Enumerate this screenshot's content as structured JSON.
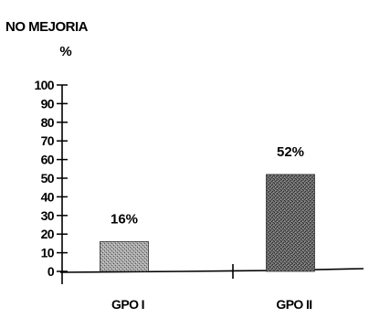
{
  "chart_data": {
    "type": "bar",
    "title": "NO MEJORIA",
    "ylabel": "%",
    "xlabel": "",
    "categories": [
      "GPO I",
      "GPO II"
    ],
    "values": [
      16,
      52
    ],
    "value_labels": [
      "16%",
      "52%"
    ],
    "ylim": [
      0,
      100
    ],
    "yticks": [
      0,
      10,
      20,
      30,
      40,
      50,
      60,
      70,
      80,
      90,
      100
    ],
    "ytick_labels": [
      "0",
      "10",
      "20",
      "30",
      "40",
      "50",
      "60",
      "70",
      "80",
      "90",
      "100"
    ],
    "grid": false,
    "legend": "none",
    "bar_fill": "stippled dark gray"
  }
}
